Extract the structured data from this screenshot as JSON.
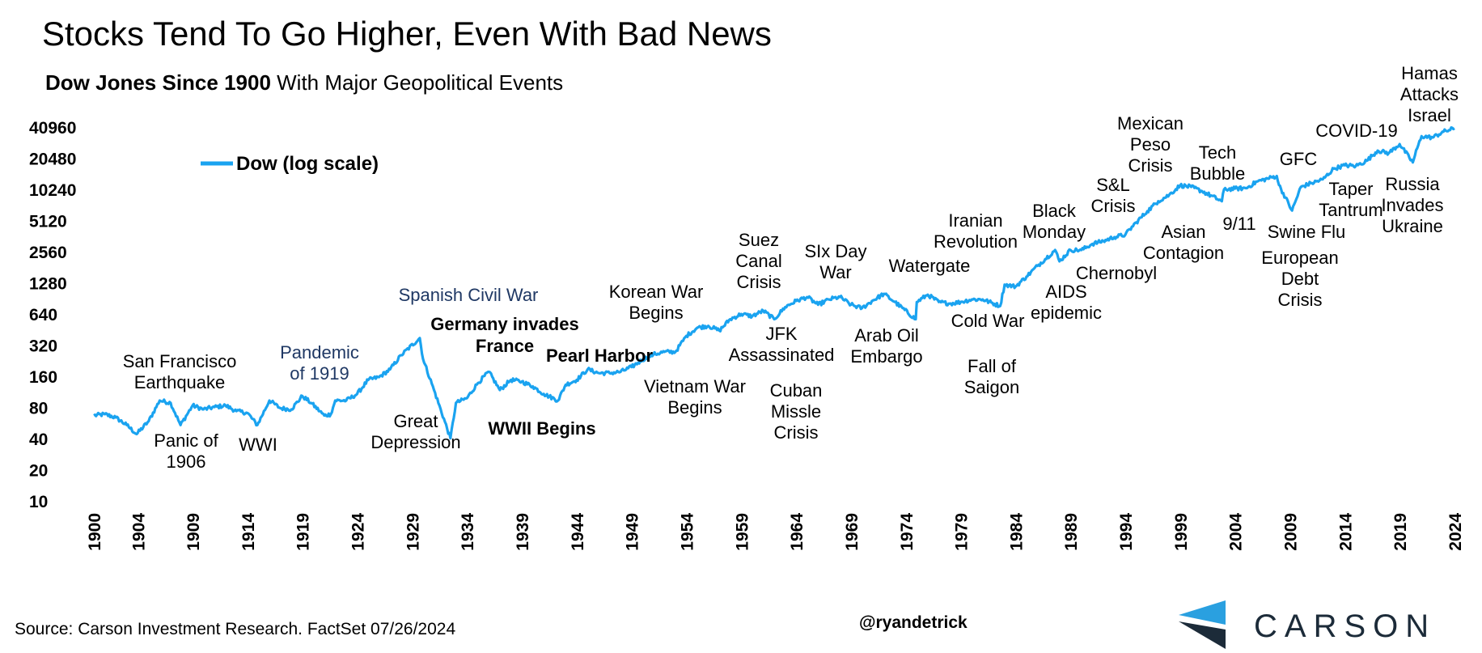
{
  "header": {
    "title": "Stocks Tend To Go Higher, Even With Bad News",
    "subtitle_bold": "Dow Jones Since 1900",
    "subtitle_rest": " With Major Geopolitical Events"
  },
  "footer": {
    "source": "Source: Carson Investment Research. FactSet 07/26/2024",
    "handle": "@ryandetrick",
    "logo_word": "CARSON"
  },
  "colors": {
    "line": "#1aa3f0",
    "logo_blue": "#2aa0e0",
    "logo_dark": "#1c2b39",
    "blue_annotation": "#1f3864"
  },
  "chart_data": {
    "type": "line",
    "y_scale": "log2",
    "ylim": [
      10,
      40960
    ],
    "xlim": [
      1900,
      2024
    ],
    "y_ticks": [
      10,
      20,
      40,
      80,
      160,
      320,
      640,
      1280,
      2560,
      5120,
      10240,
      20480,
      40960
    ],
    "x_ticks": [
      1900,
      1904,
      1909,
      1914,
      1919,
      1924,
      1929,
      1934,
      1939,
      1944,
      1949,
      1954,
      1959,
      1964,
      1969,
      1974,
      1979,
      1984,
      1989,
      1994,
      1999,
      2004,
      2009,
      2014,
      2019,
      2024
    ],
    "legend": {
      "label": "Dow (log scale)",
      "position": "top-left"
    },
    "series": [
      {
        "name": "Dow (log scale)",
        "x": [
          1900,
          1901,
          1902,
          1903,
          1903.9,
          1905,
          1906,
          1907,
          1907.9,
          1909,
          1910,
          1911,
          1912,
          1913,
          1914,
          1914.9,
          1916,
          1917,
          1918,
          1919,
          1919.8,
          1921,
          1921.6,
          1922,
          1923,
          1924,
          1925,
          1926,
          1927,
          1928,
          1929.7,
          1930,
          1931,
          1932.5,
          1933,
          1934,
          1935,
          1936,
          1937,
          1938,
          1939,
          1940,
          1941,
          1942.3,
          1943,
          1944,
          1945,
          1946,
          1947,
          1948,
          1949,
          1950,
          1951,
          1952,
          1953,
          1954,
          1955,
          1956,
          1957,
          1958,
          1959,
          1960,
          1961,
          1962,
          1963,
          1964,
          1965,
          1966,
          1967,
          1968,
          1969,
          1970,
          1971,
          1972,
          1973,
          1974.9,
          1975,
          1976,
          1977,
          1978,
          1979,
          1980,
          1981,
          1982.6,
          1983,
          1984,
          1985,
          1986,
          1987.6,
          1988,
          1989,
          1990,
          1991,
          1992,
          1993,
          1994,
          1995,
          1996,
          1997,
          1998,
          1999,
          2000,
          2001,
          2002.8,
          2003,
          2004,
          2005,
          2006,
          2007.8,
          2008,
          2009.2,
          2010,
          2011,
          2012,
          2013,
          2014,
          2015,
          2016,
          2017,
          2018,
          2019,
          2020.2,
          2020.6,
          2021,
          2022,
          2023,
          2024
        ],
        "values": [
          68,
          70,
          65,
          55,
          45,
          60,
          95,
          90,
          55,
          85,
          78,
          82,
          85,
          75,
          72,
          55,
          95,
          80,
          78,
          105,
          90,
          68,
          70,
          95,
          95,
          110,
          150,
          160,
          190,
          260,
          381,
          240,
          120,
          41,
          90,
          100,
          140,
          180,
          120,
          150,
          145,
          130,
          110,
          95,
          135,
          150,
          190,
          175,
          175,
          180,
          200,
          235,
          265,
          280,
          280,
          400,
          480,
          500,
          450,
          580,
          650,
          620,
          700,
          580,
          760,
          870,
          950,
          800,
          900,
          950,
          800,
          740,
          880,
          1020,
          850,
          580,
          850,
          1000,
          850,
          820,
          850,
          900,
          900,
          777,
          1250,
          1200,
          1500,
          1900,
          2700,
          2100,
          2700,
          2700,
          3100,
          3300,
          3600,
          3800,
          5000,
          6400,
          8000,
          9200,
          11400,
          11000,
          10000,
          8000,
          10400,
          10600,
          10700,
          12400,
          14000,
          11500,
          6500,
          11000,
          12000,
          13000,
          16500,
          17800,
          17500,
          19700,
          24700,
          23300,
          28500,
          19000,
          26000,
          34000,
          33000,
          37600,
          40500
        ]
      }
    ],
    "annotations": [
      {
        "id": "san-francisco",
        "lines": [
          "San Francisco",
          "Earthquake"
        ],
        "style": "normal"
      },
      {
        "id": "panic-1906",
        "lines": [
          "Panic of",
          "1906"
        ],
        "style": "normal"
      },
      {
        "id": "wwi",
        "lines": [
          "WWI"
        ],
        "style": "normal"
      },
      {
        "id": "pandemic-1919",
        "lines": [
          "Pandemic",
          "of 1919"
        ],
        "style": "blue"
      },
      {
        "id": "spanish-civil-war",
        "lines": [
          "Spanish Civil War"
        ],
        "style": "blue"
      },
      {
        "id": "great-depression",
        "lines": [
          "Great",
          "Depression"
        ],
        "style": "normal"
      },
      {
        "id": "germany-invades-france",
        "lines": [
          "Germany invades",
          "France"
        ],
        "style": "bold"
      },
      {
        "id": "wwii-begins",
        "lines": [
          "WWII Begins"
        ],
        "style": "bold"
      },
      {
        "id": "pearl-harbor",
        "lines": [
          "Pearl Harbor"
        ],
        "style": "bold"
      },
      {
        "id": "korean-war",
        "lines": [
          "Korean War",
          "Begins"
        ],
        "style": "normal"
      },
      {
        "id": "vietnam-war",
        "lines": [
          "Vietnam War",
          "Begins"
        ],
        "style": "normal"
      },
      {
        "id": "suez-canal",
        "lines": [
          "Suez",
          "Canal",
          "Crisis"
        ],
        "style": "normal"
      },
      {
        "id": "jfk",
        "lines": [
          "JFK",
          "Assassinated"
        ],
        "style": "normal"
      },
      {
        "id": "cuban-missle",
        "lines": [
          "Cuban",
          "Missle",
          "Crisis"
        ],
        "style": "normal"
      },
      {
        "id": "six-day-war",
        "lines": [
          "SIx Day",
          "War"
        ],
        "style": "normal"
      },
      {
        "id": "arab-oil",
        "lines": [
          "Arab Oil",
          "Embargo"
        ],
        "style": "normal"
      },
      {
        "id": "watergate",
        "lines": [
          "Watergate"
        ],
        "style": "normal"
      },
      {
        "id": "iranian-revolution",
        "lines": [
          "Iranian",
          "Revolution"
        ],
        "style": "normal"
      },
      {
        "id": "cold-war",
        "lines": [
          "Cold War"
        ],
        "style": "normal"
      },
      {
        "id": "fall-of-saigon",
        "lines": [
          "Fall of",
          "Saigon"
        ],
        "style": "normal"
      },
      {
        "id": "black-monday",
        "lines": [
          "Black",
          "Monday"
        ],
        "style": "normal"
      },
      {
        "id": "aids",
        "lines": [
          "AIDS",
          "epidemic"
        ],
        "style": "normal"
      },
      {
        "id": "chernobyl",
        "lines": [
          "Chernobyl"
        ],
        "style": "normal"
      },
      {
        "id": "sl-crisis",
        "lines": [
          "S&L",
          "Crisis"
        ],
        "style": "normal"
      },
      {
        "id": "mexican-peso",
        "lines": [
          "Mexican",
          "Peso",
          "Crisis"
        ],
        "style": "normal"
      },
      {
        "id": "asian-contagion",
        "lines": [
          "Asian",
          "Contagion"
        ],
        "style": "normal"
      },
      {
        "id": "tech-bubble",
        "lines": [
          "Tech",
          "Bubble"
        ],
        "style": "normal"
      },
      {
        "id": "nine-eleven",
        "lines": [
          "9/11"
        ],
        "style": "normal"
      },
      {
        "id": "gfc",
        "lines": [
          "GFC"
        ],
        "style": "normal"
      },
      {
        "id": "swine-flu",
        "lines": [
          "Swine  Flu"
        ],
        "style": "normal"
      },
      {
        "id": "european-debt",
        "lines": [
          "European",
          "Debt",
          "Crisis"
        ],
        "style": "normal"
      },
      {
        "id": "taper-tantrum",
        "lines": [
          "Taper",
          "Tantrum"
        ],
        "style": "normal"
      },
      {
        "id": "covid",
        "lines": [
          "COVID-19"
        ],
        "style": "normal"
      },
      {
        "id": "russia-ukraine",
        "lines": [
          "Russia",
          "Invades",
          "Ukraine"
        ],
        "style": "normal"
      },
      {
        "id": "hamas",
        "lines": [
          "Hamas",
          "Attacks",
          "Israel"
        ],
        "style": "normal"
      }
    ]
  }
}
